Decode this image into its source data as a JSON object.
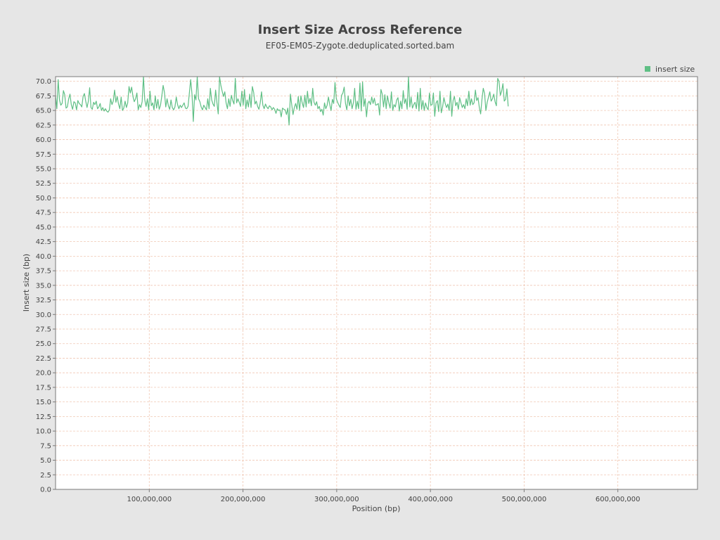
{
  "colors": {
    "background": "#e6e6e6",
    "plot_background": "#ffffff",
    "series": "#5fbf85",
    "grid": "#f0c8b4"
  },
  "chart_data": {
    "type": "line",
    "title": "Insert Size Across Reference",
    "subtitle": "EF05-EM05-Zygote.deduplicated.sorted.bam",
    "xlabel": "Position (bp)",
    "ylabel": "Insert size (bp)",
    "xlim": [
      0,
      685000000
    ],
    "ylim": [
      0,
      70.8
    ],
    "x_ticks": [
      100000000,
      200000000,
      300000000,
      400000000,
      500000000,
      600000000
    ],
    "x_tick_labels": [
      "100,000,000",
      "200,000,000",
      "300,000,000",
      "400,000,000",
      "500,000,000",
      "600,000,000"
    ],
    "y_ticks": [
      0,
      2.5,
      5,
      7.5,
      10,
      12.5,
      15,
      17.5,
      20,
      22.5,
      25,
      27.5,
      30,
      32.5,
      35,
      37.5,
      40,
      42.5,
      45,
      47.5,
      50,
      52.5,
      55,
      57.5,
      60,
      62.5,
      65,
      67.5,
      70
    ],
    "y_tick_labels": [
      "0.0",
      "2.5",
      "5.0",
      "7.5",
      "10.0",
      "12.5",
      "15.0",
      "17.5",
      "20.0",
      "22.5",
      "25.0",
      "27.5",
      "30.0",
      "32.5",
      "35.0",
      "37.5",
      "40.0",
      "42.5",
      "45.0",
      "47.5",
      "50.0",
      "52.5",
      "55.0",
      "57.5",
      "60.0",
      "62.5",
      "65.0",
      "67.5",
      "70.0"
    ],
    "grid": true,
    "legend": {
      "position": "top-right",
      "entries": [
        "insert size"
      ]
    },
    "series": [
      {
        "name": "insert size",
        "x_start": 0,
        "x_step": 1400000,
        "values": [
          67.5,
          65.3,
          70.3,
          66.8,
          65.9,
          66.2,
          68.4,
          67.7,
          65.4,
          65.6,
          67.0,
          67.8,
          66.0,
          65.2,
          66.5,
          66.3,
          65.1,
          66.7,
          66.2,
          66.0,
          65.6,
          67.4,
          67.9,
          66.6,
          65.5,
          66.6,
          68.9,
          65.5,
          65.2,
          66.4,
          66.0,
          66.6,
          65.3,
          65.6,
          66.2,
          65.0,
          65.5,
          64.9,
          65.3,
          64.9,
          64.7,
          65.1,
          67.0,
          66.0,
          66.6,
          68.5,
          66.4,
          67.4,
          66.1,
          65.3,
          67.3,
          65.0,
          65.4,
          66.6,
          65.5,
          66.3,
          69.1,
          68.0,
          69.0,
          67.4,
          66.5,
          67.0,
          68.0,
          65.1,
          66.0,
          65.5,
          66.5,
          71.0,
          66.8,
          65.7,
          67.0,
          65.1,
          68.3,
          65.8,
          66.3,
          65.1,
          67.5,
          65.4,
          66.9,
          65.2,
          65.9,
          67.5,
          69.3,
          68.1,
          65.6,
          67.0,
          65.8,
          65.2,
          66.8,
          65.5,
          65.1,
          65.6,
          67.3,
          66.0,
          65.3,
          65.9,
          65.5,
          65.9,
          66.3,
          65.4,
          65.3,
          65.7,
          68.0,
          70.3,
          67.8,
          63.1,
          67.7,
          66.8,
          71.0,
          67.0,
          66.5,
          65.6,
          65.1,
          65.9,
          65.5,
          65.1,
          67.0,
          65.3,
          68.8,
          66.8,
          66.1,
          65.7,
          68.5,
          66.3,
          64.4,
          71.0,
          69.3,
          68.3,
          67.4,
          68.2,
          66.3,
          65.3,
          67.0,
          65.7,
          67.6,
          66.7,
          66.1,
          70.5,
          66.3,
          67.0,
          66.4,
          65.7,
          68.3,
          65.9,
          68.6,
          65.3,
          66.8,
          65.6,
          67.8,
          65.5,
          69.1,
          68.1,
          66.1,
          66.6,
          65.7,
          65.2,
          66.3,
          68.2,
          65.9,
          65.3,
          66.1,
          65.6,
          65.3,
          65.8,
          65.6,
          65.1,
          65.5,
          65.2,
          64.5,
          65.3,
          65.0,
          65.1,
          63.9,
          65.4,
          65.2,
          65.1,
          64.3,
          65.4,
          62.5,
          67.8,
          66.0,
          64.3,
          65.5,
          66.2,
          65.2,
          67.4,
          65.0,
          67.5,
          66.3,
          65.5,
          67.6,
          65.6,
          68.3,
          66.2,
          67.1,
          65.8,
          68.8,
          66.4,
          65.9,
          66.5,
          65.3,
          65.7,
          64.8,
          65.2,
          64.2,
          66.3,
          65.3,
          65.9,
          67.3,
          66.0,
          65.0,
          66.9,
          66.2,
          69.8,
          67.0,
          66.4,
          65.9,
          65.5,
          67.6,
          68.0,
          69.0,
          66.2,
          65.1,
          67.5,
          65.8,
          66.9,
          65.3,
          66.3,
          68.8,
          65.2,
          66.6,
          65.3,
          69.7,
          64.9,
          69.9,
          65.7,
          67.0,
          63.9,
          66.2,
          66.6,
          66.0,
          67.3,
          66.2,
          67.1,
          65.9,
          66.0,
          66.2,
          64.2,
          68.6,
          67.8,
          65.6,
          67.7,
          65.3,
          67.5,
          66.3,
          65.4,
          68.2,
          65.0,
          66.0,
          65.6,
          66.8,
          67.2,
          64.9,
          66.6,
          65.3,
          68.4,
          66.2,
          67.0,
          65.2,
          70.8,
          65.6,
          67.3,
          65.4,
          66.0,
          66.4,
          65.3,
          68.1,
          64.9,
          68.8,
          65.2,
          66.7,
          65.0,
          66.3,
          65.5,
          65.1,
          68.0,
          65.9,
          66.0,
          68.0,
          64.0,
          66.3,
          66.7,
          64.8,
          68.3,
          64.6,
          65.6,
          67.2,
          66.2,
          65.5,
          66.1,
          65.0,
          68.3,
          64.0,
          66.7,
          67.4,
          65.8,
          66.4,
          65.2,
          67.2,
          66.3,
          65.5,
          66.0,
          65.3,
          67.0,
          65.8,
          68.3,
          65.9,
          67.0,
          66.0,
          66.3,
          68.5,
          66.7,
          67.2,
          65.5,
          64.4,
          66.9,
          68.8,
          67.9,
          65.0,
          66.4,
          67.3,
          68.2,
          66.6,
          67.0,
          67.8,
          66.5,
          65.8,
          70.5,
          70.0,
          67.6,
          68.3,
          69.6,
          66.6,
          66.9,
          68.7,
          65.7
        ]
      }
    ]
  }
}
